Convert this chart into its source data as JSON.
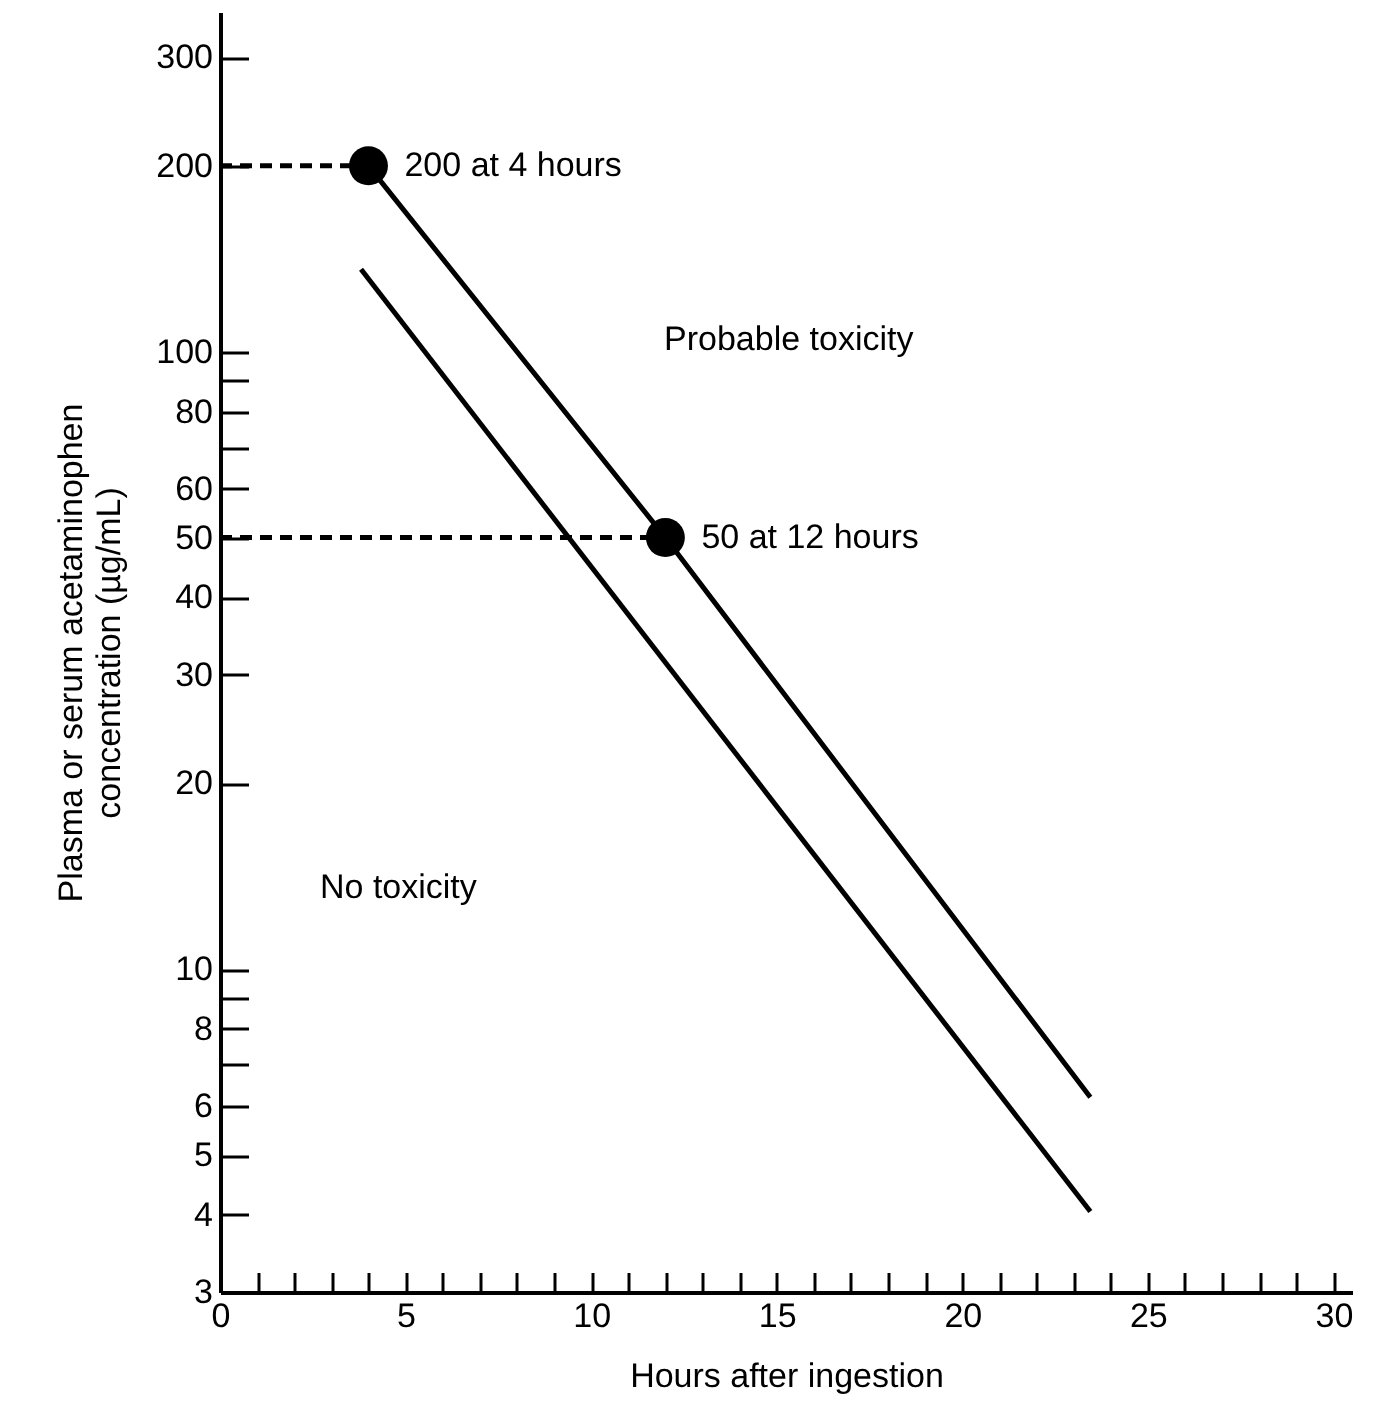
{
  "chart_data": {
    "type": "line",
    "xlabel": "Hours after ingestion",
    "ylabel": "Plasma or serum acetaminophen\nconcentration (µg/mL)",
    "log": "y",
    "grid": false,
    "xlim": [
      0,
      30.5
    ],
    "ylim": [
      3,
      355
    ],
    "xticks": [
      0,
      {
        "value": 1,
        "label": null
      },
      {
        "value": 2,
        "label": null
      },
      {
        "value": 3,
        "label": null
      },
      {
        "value": 4,
        "label": null
      },
      5,
      {
        "value": 6,
        "label": null
      },
      {
        "value": 7,
        "label": null
      },
      {
        "value": 8,
        "label": null
      },
      {
        "value": 9,
        "label": null
      },
      10,
      {
        "value": 11,
        "label": null
      },
      {
        "value": 12,
        "label": null
      },
      {
        "value": 13,
        "label": null
      },
      {
        "value": 14,
        "label": null
      },
      15,
      {
        "value": 16,
        "label": null
      },
      {
        "value": 17,
        "label": null
      },
      {
        "value": 18,
        "label": null
      },
      {
        "value": 19,
        "label": null
      },
      20,
      {
        "value": 21,
        "label": null
      },
      {
        "value": 22,
        "label": null
      },
      {
        "value": 23,
        "label": null
      },
      {
        "value": 24,
        "label": null
      },
      25,
      {
        "value": 26,
        "label": null
      },
      {
        "value": 27,
        "label": null
      },
      {
        "value": 28,
        "label": null
      },
      {
        "value": 29,
        "label": null
      },
      30
    ],
    "yticks": [
      3,
      4,
      5,
      6,
      {
        "value": 7,
        "label": null
      },
      8,
      {
        "value": 9,
        "label": null
      },
      10,
      20,
      30,
      40,
      50,
      60,
      {
        "value": 70,
        "label": null
      },
      80,
      {
        "value": 90,
        "label": null
      },
      100,
      200,
      300
    ],
    "series": [
      {
        "color": "#000000",
        "line_style": "solid",
        "x": [
          4,
          12,
          23.45
        ],
        "values": [
          200,
          50,
          6.2
        ]
      },
      {
        "color": "#000000",
        "line_style": "solid",
        "x": [
          3.8,
          23.45
        ],
        "values": [
          136,
          4.05
        ]
      },
      {
        "color": "#000000",
        "line_style": "dashed",
        "x": [
          0,
          4
        ],
        "values": [
          200,
          200
        ]
      },
      {
        "color": "#000000",
        "line_style": "dashed",
        "x": [
          0,
          12
        ],
        "values": [
          50,
          50
        ]
      },
      {
        "type": "scatter",
        "color": "#000000",
        "marker": "circle",
        "x": [
          4,
          12
        ],
        "values": [
          200,
          50
        ]
      }
    ],
    "annotations": [
      {
        "text": "200 at 4 hours",
        "x": 4,
        "y": 200
      },
      {
        "text": "50 at 12 hours",
        "x": 12,
        "y": 50
      },
      "Probable toxicity",
      "No toxicity"
    ]
  }
}
